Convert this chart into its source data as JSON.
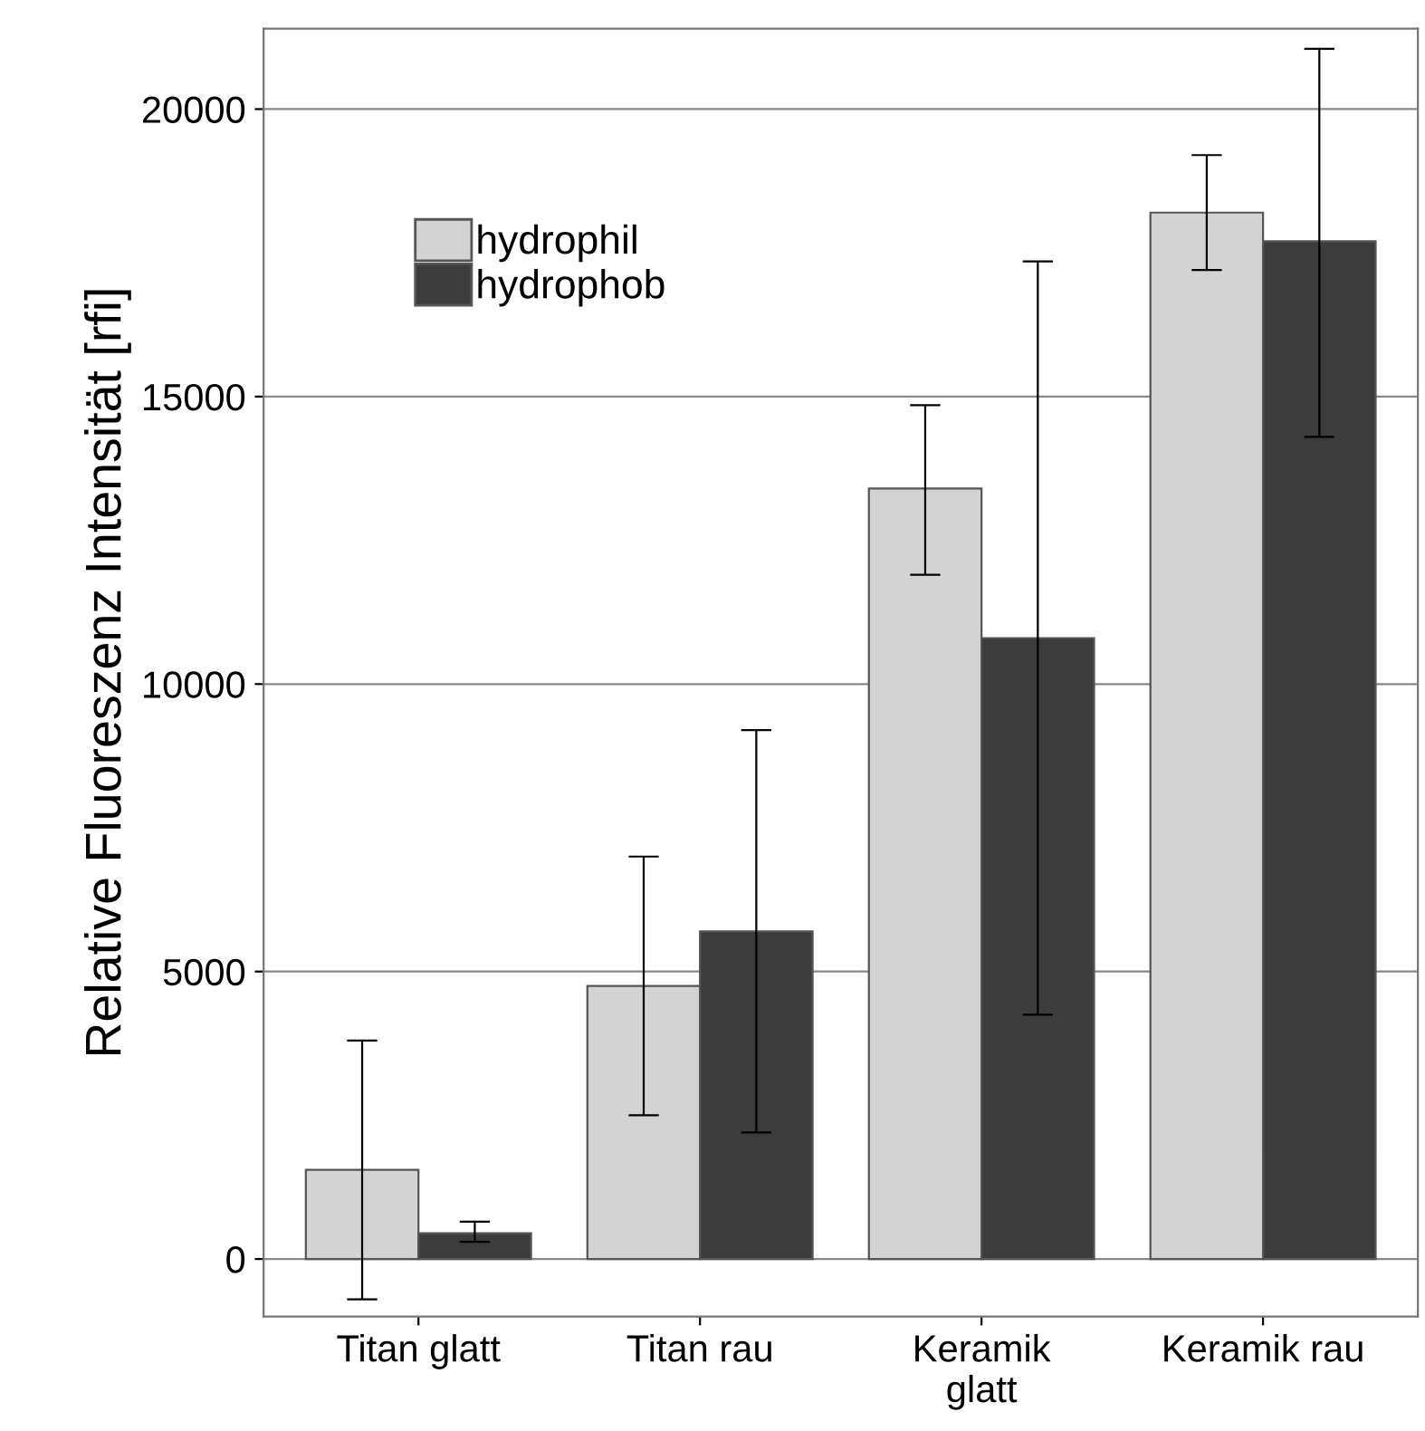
{
  "chart_data": {
    "type": "bar",
    "ylabel": "Relative Fluoreszenz Intensität [rfi]",
    "categories": [
      "Titan glatt",
      "Titan rau",
      "Keramik\nglatt",
      "Keramik rau"
    ],
    "series": [
      {
        "name": "hydrophil",
        "color": "#d3d3d3",
        "values": [
          1550,
          4750,
          13400,
          18200
        ],
        "errors": [
          [
            -700,
            3800
          ],
          [
            2500,
            7000
          ],
          [
            11900,
            14850
          ],
          [
            17200,
            19200
          ]
        ]
      },
      {
        "name": "hydrophob",
        "color": "#3c3c3c",
        "values": [
          450,
          5700,
          10800,
          17700
        ],
        "errors": [
          [
            300,
            650
          ],
          [
            2200,
            9200
          ],
          [
            4250,
            17350
          ],
          [
            14300,
            21050
          ]
        ]
      }
    ],
    "ylim": [
      -1000,
      21400
    ],
    "yticks": [
      0,
      5000,
      10000,
      15000,
      20000
    ],
    "grid": "y",
    "legend": "top left"
  }
}
